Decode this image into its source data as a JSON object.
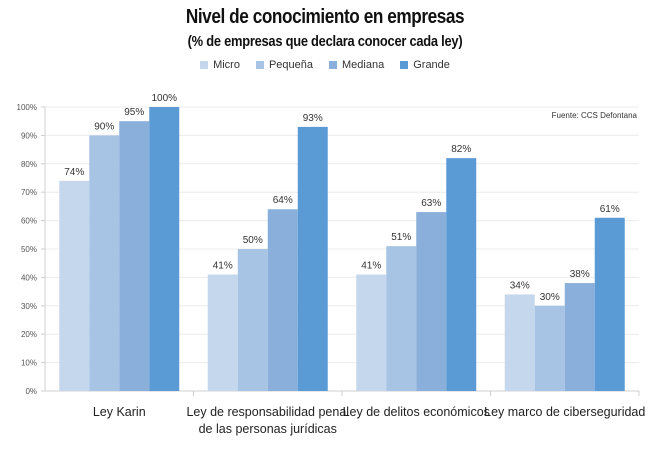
{
  "chart_data": {
    "type": "bar",
    "title": "Nivel de conocimiento en empresas",
    "subtitle": "(% de empresas que declara conocer cada ley)",
    "source": "Fuente: CCS Defontana",
    "xlabel": "",
    "ylabel": "",
    "ylim": [
      0,
      100
    ],
    "yticks": [
      0,
      10,
      20,
      30,
      40,
      50,
      60,
      70,
      80,
      90,
      100
    ],
    "ytick_labels": [
      "0%",
      "10%",
      "20%",
      "30%",
      "40%",
      "50%",
      "60%",
      "70%",
      "80%",
      "90%",
      "100%"
    ],
    "grid": true,
    "legend_position": "top-center",
    "categories": [
      [
        "Ley Karin"
      ],
      [
        "Ley de responsabilidad penal",
        "de las personas jurídicas"
      ],
      [
        "Ley de delitos económicos"
      ],
      [
        "Ley marco de ciberseguridad"
      ]
    ],
    "series": [
      {
        "name": "Micro",
        "color": "#c5d7ec",
        "values": [
          74,
          41,
          41,
          34
        ]
      },
      {
        "name": "Pequeña",
        "color": "#a8c4e5",
        "values": [
          90,
          50,
          51,
          30
        ]
      },
      {
        "name": "Mediana",
        "color": "#8aafdb",
        "values": [
          95,
          64,
          63,
          38
        ]
      },
      {
        "name": "Grande",
        "color": "#5b9bd5",
        "values": [
          100,
          93,
          82,
          61
        ]
      }
    ],
    "value_suffix": "%"
  }
}
